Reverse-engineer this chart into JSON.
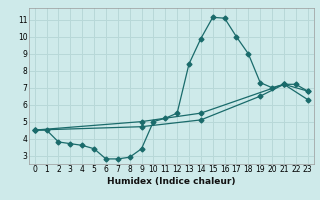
{
  "xlabel": "Humidex (Indice chaleur)",
  "background_color": "#ceeaea",
  "grid_color": "#b8d8d8",
  "line_color": "#1a6b6b",
  "xlim": [
    -0.5,
    23.5
  ],
  "ylim": [
    2.5,
    11.7
  ],
  "xticks": [
    0,
    1,
    2,
    3,
    4,
    5,
    6,
    7,
    8,
    9,
    10,
    11,
    12,
    13,
    14,
    15,
    16,
    17,
    18,
    19,
    20,
    21,
    22,
    23
  ],
  "yticks": [
    3,
    4,
    5,
    6,
    7,
    8,
    9,
    10,
    11
  ],
  "curve1_x": [
    0,
    1,
    2,
    3,
    4,
    5,
    6,
    7,
    8,
    9,
    10,
    11,
    12,
    13,
    14,
    15,
    16,
    17,
    18,
    19,
    20,
    21,
    22,
    23
  ],
  "curve1_y": [
    4.5,
    4.5,
    3.8,
    3.7,
    3.6,
    3.4,
    2.8,
    2.8,
    2.9,
    3.4,
    5.0,
    5.2,
    5.5,
    8.4,
    9.9,
    11.15,
    11.1,
    10.0,
    9.0,
    7.3,
    7.0,
    7.2,
    7.2,
    6.8
  ],
  "curve2_x": [
    0,
    9,
    14,
    21,
    23
  ],
  "curve2_y": [
    4.5,
    5.0,
    5.5,
    7.2,
    6.8
  ],
  "curve3_x": [
    0,
    9,
    14,
    19,
    21,
    23
  ],
  "curve3_y": [
    4.5,
    4.7,
    5.1,
    6.5,
    7.2,
    6.3
  ],
  "markersize": 2.5,
  "linewidth": 0.9,
  "tick_fontsize": 5.5,
  "xlabel_fontsize": 6.5
}
